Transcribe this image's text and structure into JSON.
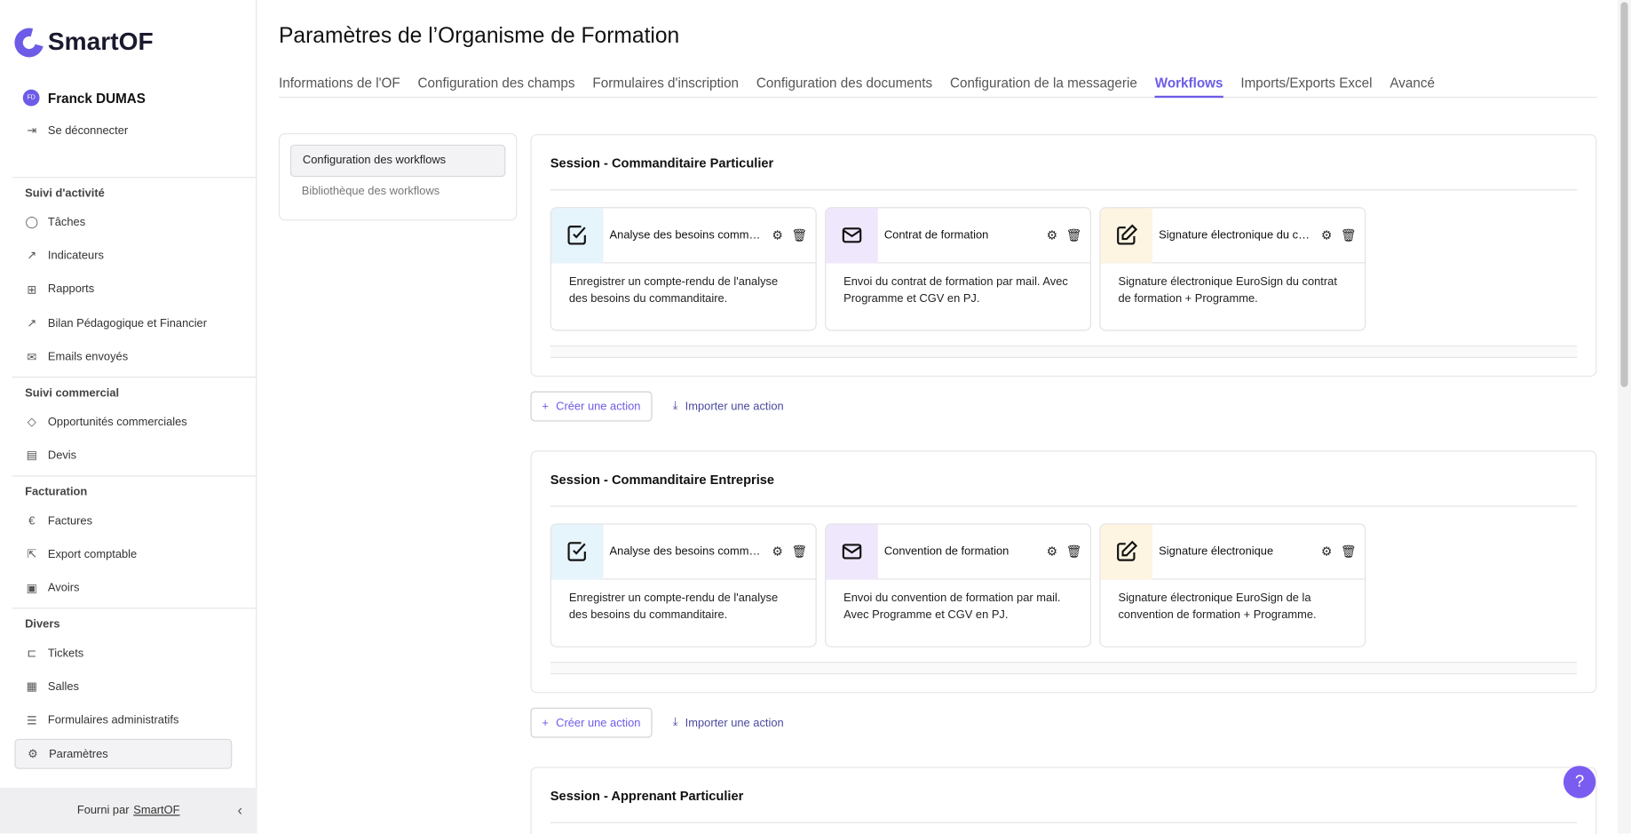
{
  "brand": {
    "name": "SmartOF",
    "accent": "#6c5ce7"
  },
  "user": {
    "initials": "FD",
    "name": "Franck DUMAS",
    "logout": "Se déconnecter"
  },
  "sidebar": {
    "sections": [
      {
        "title": "Suivi d'activité",
        "items": [
          {
            "label": "Tâches",
            "icon": "check-circle-icon"
          },
          {
            "label": "Indicateurs",
            "icon": "chart-line-icon"
          },
          {
            "label": "Rapports",
            "icon": "table-icon"
          },
          {
            "label": "Bilan Pédagogique et Financier",
            "icon": "chart-icon"
          },
          {
            "label": "Emails envoyés",
            "icon": "mail-icon"
          }
        ]
      },
      {
        "title": "Suivi commercial",
        "items": [
          {
            "label": "Opportunités commerciales",
            "icon": "tag-icon"
          },
          {
            "label": "Devis",
            "icon": "document-icon"
          }
        ]
      },
      {
        "title": "Facturation",
        "items": [
          {
            "label": "Factures",
            "icon": "euro-icon"
          },
          {
            "label": "Export comptable",
            "icon": "export-icon"
          },
          {
            "label": "Avoirs",
            "icon": "cash-icon"
          }
        ]
      },
      {
        "title": "Divers",
        "items": [
          {
            "label": "Tickets",
            "icon": "ticket-icon"
          },
          {
            "label": "Salles",
            "icon": "grid-icon"
          },
          {
            "label": "Formulaires administratifs",
            "icon": "list-icon"
          },
          {
            "label": "Paramètres",
            "icon": "gear-icon",
            "active": true
          }
        ]
      }
    ],
    "footer": {
      "prefix": "Fourni par",
      "link": "SmartOF"
    }
  },
  "page": {
    "title": "Paramètres de l’Organisme de Formation",
    "tabs": [
      "Informations de l'OF",
      "Configuration des champs",
      "Formulaires d'inscription",
      "Configuration des documents",
      "Configuration de la messagerie",
      "Workflows",
      "Imports/Exports Excel",
      "Avancé"
    ],
    "active_tab": "Workflows",
    "subnav": [
      "Configuration des workflows",
      "Bibliothèque des workflows"
    ]
  },
  "workflows": [
    {
      "title": "Session - Commanditaire Particulier",
      "cards": [
        {
          "title": "Analyse des besoins commanditaire",
          "icon": "checkbox-icon",
          "color": "#e6f4fb",
          "desc": "Enregistrer un compte-rendu de l'analyse des besoins du commanditaire."
        },
        {
          "title": "Contrat de formation",
          "icon": "mail-icon",
          "color": "#efe7fb",
          "desc": "Envoi du contrat de formation par mail. Avec Programme et CGV en PJ."
        },
        {
          "title": "Signature électronique du contrat",
          "icon": "edit-icon",
          "color": "#fdf5e2",
          "desc": "Signature électronique EuroSign du contrat de formation + Programme."
        }
      ]
    },
    {
      "title": "Session - Commanditaire Entreprise",
      "cards": [
        {
          "title": "Analyse des besoins commanditaire",
          "icon": "checkbox-icon",
          "color": "#e6f4fb",
          "desc": "Enregistrer un compte-rendu de l'analyse des besoins du commanditaire."
        },
        {
          "title": "Convention de formation",
          "icon": "mail-icon",
          "color": "#efe7fb",
          "desc": "Envoi du convention de formation par mail. Avec Programme et CGV en PJ."
        },
        {
          "title": "Signature électronique",
          "icon": "edit-icon",
          "color": "#fdf5e2",
          "desc": "Signature électronique EuroSign de la convention de formation + Programme."
        }
      ]
    },
    {
      "title": "Session - Apprenant Particulier",
      "cards": []
    }
  ],
  "actions": {
    "create": "Créer une action",
    "import": "Importer une action"
  },
  "help": "?"
}
